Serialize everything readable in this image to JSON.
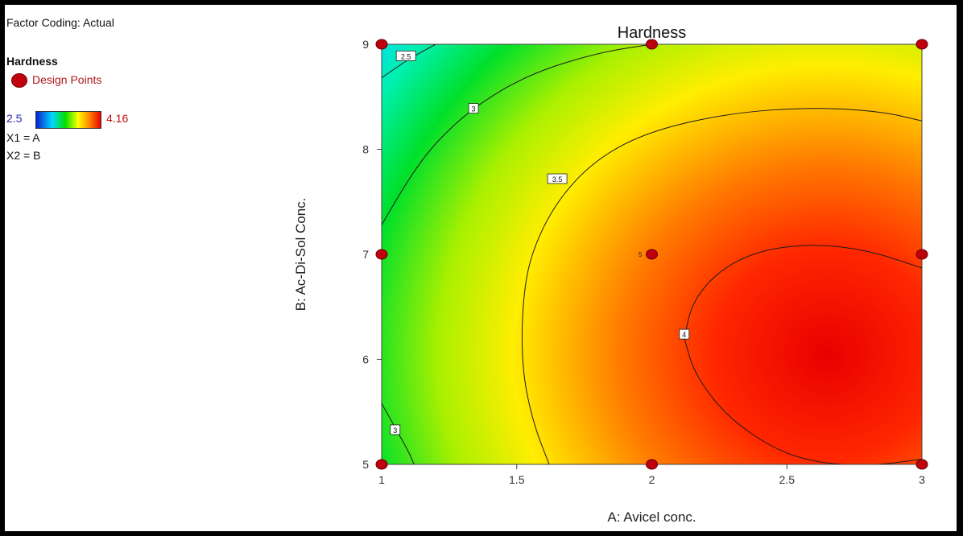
{
  "legend": {
    "factor_coding": "Factor Coding: Actual",
    "title": "Hardness",
    "design_points_label": "Design Points",
    "scale_min": "2.5",
    "scale_max": "4.16",
    "x1": "X1 = A",
    "x2": "X2 = B"
  },
  "colors": {
    "design_point": "#c0000c",
    "low": "#0a1fd0",
    "high": "#e80000"
  },
  "chart_data": {
    "type": "heatmap",
    "title": "Hardness",
    "xlabel": "A: Avicel conc.",
    "ylabel": "B: Ac-Di-Sol Conc.",
    "xlim": [
      1,
      3
    ],
    "ylim": [
      5,
      9
    ],
    "x_ticks": [
      "1",
      "1.5",
      "2",
      "2.5",
      "3"
    ],
    "y_ticks": [
      "5",
      "6",
      "7",
      "8",
      "9"
    ],
    "z_range": [
      2.5,
      4.16
    ],
    "contours": [
      {
        "level": "2.5",
        "label_at": [
          1.09,
          8.89
        ],
        "path": [
          [
            1.0,
            8.68
          ],
          [
            1.1,
            8.86
          ],
          [
            1.2,
            9.0
          ]
        ]
      },
      {
        "level": "3",
        "label_at": [
          1.34,
          8.39
        ],
        "path": [
          [
            1.0,
            7.28
          ],
          [
            1.1,
            7.72
          ],
          [
            1.2,
            8.07
          ],
          [
            1.35,
            8.42
          ],
          [
            1.55,
            8.72
          ],
          [
            1.8,
            8.92
          ],
          [
            2.0,
            9.0
          ]
        ]
      },
      {
        "level": "3",
        "label_at": [
          1.05,
          5.33
        ],
        "path": [
          [
            1.0,
            5.58
          ],
          [
            1.05,
            5.35
          ],
          [
            1.1,
            5.12
          ],
          [
            1.12,
            5.0
          ]
        ]
      },
      {
        "level": "3.5",
        "label_at": [
          1.65,
          7.72
        ],
        "path": [
          [
            1.62,
            5.0
          ],
          [
            1.56,
            5.4
          ],
          [
            1.52,
            5.9
          ],
          [
            1.52,
            6.5
          ],
          [
            1.55,
            7.0
          ],
          [
            1.65,
            7.52
          ],
          [
            1.8,
            7.92
          ],
          [
            2.0,
            8.18
          ],
          [
            2.3,
            8.35
          ],
          [
            2.6,
            8.4
          ],
          [
            2.85,
            8.36
          ],
          [
            3.0,
            8.27
          ]
        ]
      },
      {
        "level": "4",
        "label_at": [
          2.12,
          6.24
        ],
        "path": [
          [
            2.12,
            6.2
          ],
          [
            2.15,
            6.55
          ],
          [
            2.25,
            6.85
          ],
          [
            2.4,
            7.04
          ],
          [
            2.6,
            7.1
          ],
          [
            2.8,
            7.04
          ],
          [
            3.0,
            6.87
          ]
        ],
        "path2": [
          [
            2.12,
            6.2
          ],
          [
            2.16,
            5.85
          ],
          [
            2.28,
            5.45
          ],
          [
            2.45,
            5.15
          ],
          [
            2.6,
            5.02
          ],
          [
            2.8,
            4.98
          ],
          [
            3.0,
            5.05
          ]
        ]
      }
    ],
    "design_points": [
      {
        "x": 1,
        "y": 9
      },
      {
        "x": 2,
        "y": 9
      },
      {
        "x": 3,
        "y": 9
      },
      {
        "x": 1,
        "y": 7
      },
      {
        "x": 2,
        "y": 7,
        "label": "5"
      },
      {
        "x": 3,
        "y": 7
      },
      {
        "x": 1,
        "y": 5
      },
      {
        "x": 2,
        "y": 5
      },
      {
        "x": 3,
        "y": 5
      }
    ]
  }
}
